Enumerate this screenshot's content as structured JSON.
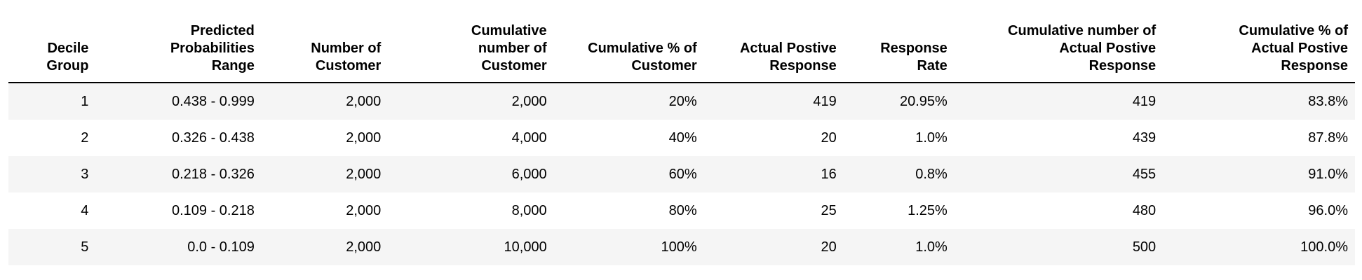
{
  "table": {
    "headers": [
      [
        "Decile",
        "Group"
      ],
      [
        "Predicted",
        "Probabilities",
        "Range"
      ],
      [
        "Number of",
        "Customer"
      ],
      [
        "Cumulative",
        "number of",
        "Customer"
      ],
      [
        "Cumulative % of",
        "Customer"
      ],
      [
        "Actual Postive",
        "Response"
      ],
      [
        "Response",
        "Rate"
      ],
      [
        "Cumulative number of",
        "Actual Postive",
        "Response"
      ],
      [
        "Cumulative % of",
        "Actual Postive",
        "Response"
      ]
    ],
    "rows": [
      [
        "1",
        "0.438 - 0.999",
        "2,000",
        "2,000",
        "20%",
        "419",
        "20.95%",
        "419",
        "83.8%"
      ],
      [
        "2",
        "0.326 - 0.438",
        "2,000",
        "4,000",
        "40%",
        "20",
        "1.0%",
        "439",
        "87.8%"
      ],
      [
        "3",
        "0.218 - 0.326",
        "2,000",
        "6,000",
        "60%",
        "16",
        "0.8%",
        "455",
        "91.0%"
      ],
      [
        "4",
        "0.109 - 0.218",
        "2,000",
        "8,000",
        "80%",
        "25",
        "1.25%",
        "480",
        "96.0%"
      ],
      [
        "5",
        "0.0 - 0.109",
        "2,000",
        "10,000",
        "100%",
        "20",
        "1.0%",
        "500",
        "100.0%"
      ]
    ]
  },
  "colors": {
    "stripe": "#f5f5f5",
    "text": "#000000",
    "header_rule": "#000000"
  }
}
